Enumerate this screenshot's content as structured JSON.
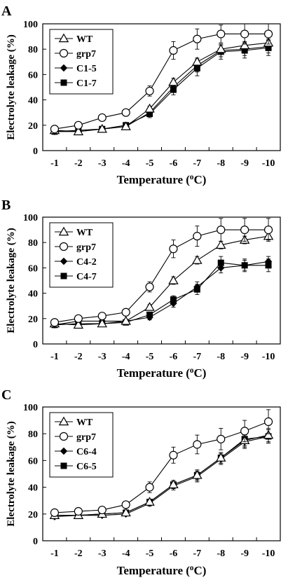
{
  "chart_data": [
    {
      "type": "line",
      "panel_label": "A",
      "xlabel": "Temperature (oC)",
      "ylabel": "Electrolyte leakage (%)",
      "x": [
        -1,
        -2,
        -3,
        -4,
        -5,
        -6,
        -7,
        -8,
        -9,
        -10
      ],
      "xticks": [
        "-1",
        "-2",
        "-3",
        "-4",
        "-5",
        "-6",
        "-7",
        "-8",
        "-9",
        "-10"
      ],
      "yticks": [
        "0",
        "20",
        "40",
        "60",
        "80",
        "100"
      ],
      "ylim": [
        0,
        100
      ],
      "grid": false,
      "legend_position": "top-left",
      "series": [
        {
          "name": "WT",
          "marker": "triangle-open",
          "values": [
            16,
            15,
            17,
            19,
            33,
            54,
            70,
            80,
            83,
            85
          ],
          "errors": [
            1,
            1,
            1,
            2,
            2,
            3,
            3,
            3,
            3,
            3
          ]
        },
        {
          "name": "grp7",
          "marker": "circle-open",
          "values": [
            17,
            20,
            26,
            30,
            47,
            79,
            88,
            92,
            92,
            92
          ],
          "errors": [
            1,
            1,
            1,
            2,
            4,
            7,
            8,
            7,
            8,
            8
          ]
        },
        {
          "name": "C1-5",
          "marker": "diamond",
          "values": [
            15,
            15,
            17,
            19,
            30,
            50,
            67,
            79,
            80,
            82
          ],
          "errors": [
            1,
            1,
            1,
            2,
            3,
            4,
            5,
            5,
            5,
            5
          ]
        },
        {
          "name": "C1-7",
          "marker": "square",
          "values": [
            15,
            16,
            17,
            20,
            29,
            48,
            65,
            78,
            79,
            81
          ],
          "errors": [
            1,
            1,
            1,
            2,
            3,
            4,
            6,
            6,
            6,
            6
          ]
        }
      ]
    },
    {
      "type": "line",
      "panel_label": "B",
      "xlabel": "Temperature (oC)",
      "ylabel": "Electrolyte leakage (%)",
      "x": [
        -1,
        -2,
        -3,
        -4,
        -5,
        -6,
        -7,
        -8,
        -9,
        -10
      ],
      "xticks": [
        "-1",
        "-2",
        "-3",
        "-4",
        "-5",
        "-6",
        "-7",
        "-8",
        "-9",
        "-10"
      ],
      "yticks": [
        "0",
        "20",
        "40",
        "60",
        "80",
        "100"
      ],
      "ylim": [
        0,
        100
      ],
      "grid": false,
      "legend_position": "top-left",
      "series": [
        {
          "name": "WT",
          "marker": "triangle-open",
          "values": [
            16,
            15,
            16,
            18,
            29,
            50,
            66,
            78,
            82,
            85
          ],
          "errors": [
            1,
            1,
            1,
            1,
            2,
            3,
            3,
            3,
            3,
            3
          ]
        },
        {
          "name": "grp7",
          "marker": "circle-open",
          "values": [
            17,
            20,
            22,
            25,
            45,
            75,
            85,
            90,
            90,
            90
          ],
          "errors": [
            2,
            2,
            2,
            2,
            4,
            7,
            8,
            9,
            9,
            9
          ]
        },
        {
          "name": "C4-2",
          "marker": "diamond",
          "values": [
            15,
            18,
            18,
            18,
            21,
            32,
            45,
            60,
            62,
            65
          ],
          "errors": [
            1,
            1,
            1,
            1,
            2,
            3,
            4,
            4,
            4,
            4
          ]
        },
        {
          "name": "C4-7",
          "marker": "square",
          "values": [
            15,
            16,
            16,
            17,
            23,
            35,
            43,
            64,
            62,
            62
          ],
          "errors": [
            1,
            1,
            1,
            1,
            2,
            3,
            4,
            5,
            5,
            5
          ]
        }
      ]
    },
    {
      "type": "line",
      "panel_label": "C",
      "xlabel": "Temperature (oC)",
      "ylabel": "Electrolyte leakage (%)",
      "x": [
        -1,
        -2,
        -3,
        -4,
        -5,
        -6,
        -7,
        -8,
        -9,
        -10
      ],
      "xticks": [
        "-1",
        "-2",
        "-3",
        "-4",
        "-5",
        "-6",
        "-7",
        "-8",
        "-9",
        "-10"
      ],
      "yticks": [
        "0",
        "20",
        "40",
        "60",
        "80",
        "100"
      ],
      "ylim": [
        0,
        100
      ],
      "grid": false,
      "legend_position": "top-left",
      "series": [
        {
          "name": "WT",
          "marker": "triangle-open",
          "values": [
            19,
            19,
            20,
            21,
            29,
            42,
            49,
            62,
            75,
            79
          ],
          "errors": [
            1,
            1,
            1,
            1,
            2,
            3,
            3,
            4,
            5,
            5
          ]
        },
        {
          "name": "grp7",
          "marker": "circle-open",
          "values": [
            21,
            22,
            23,
            27,
            40,
            64,
            72,
            76,
            82,
            89
          ],
          "errors": [
            2,
            2,
            2,
            2,
            4,
            6,
            7,
            8,
            8,
            9
          ]
        },
        {
          "name": "C6-4",
          "marker": "diamond",
          "values": [
            18,
            19,
            19,
            20,
            28,
            41,
            48,
            61,
            74,
            78
          ],
          "errors": [
            1,
            1,
            1,
            1,
            2,
            3,
            4,
            4,
            5,
            5
          ]
        },
        {
          "name": "C6-5",
          "marker": "square",
          "values": [
            19,
            19,
            20,
            21,
            29,
            42,
            49,
            62,
            76,
            78
          ],
          "errors": [
            1,
            1,
            1,
            1,
            2,
            3,
            4,
            4,
            5,
            5
          ]
        }
      ]
    }
  ]
}
